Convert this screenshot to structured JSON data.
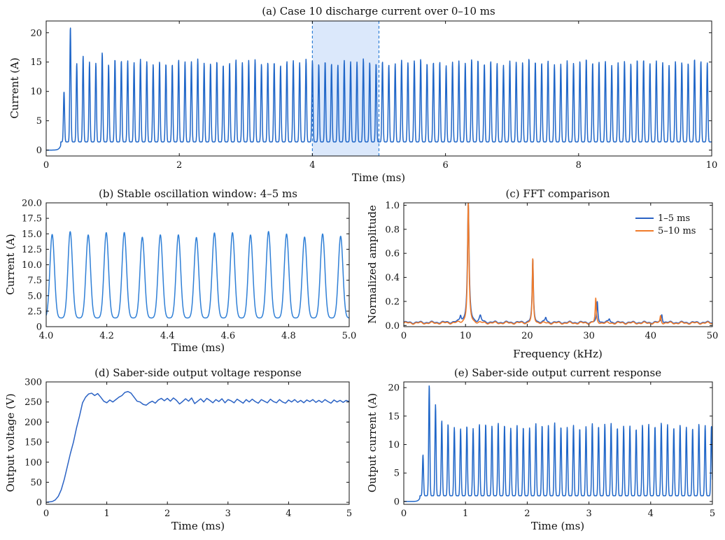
{
  "chart_data": [
    {
      "id": "a",
      "type": "line",
      "title": "(a) Case 10 discharge current over 0–10 ms",
      "xlabel": "Time (ms)",
      "ylabel": "Current (A)",
      "xlim": [
        0,
        10
      ],
      "ylim": [
        -1,
        22
      ],
      "xticks": [
        "0",
        "2",
        "4",
        "6",
        "8",
        "10"
      ],
      "xtick_values": [
        0,
        2,
        4,
        6,
        8,
        10
      ],
      "yticks": [
        "0",
        "5",
        "10",
        "15",
        "20"
      ],
      "ytick_values": [
        0,
        5,
        10,
        15,
        20
      ],
      "grid": false,
      "highlight_window": [
        4,
        5
      ],
      "series": [
        {
          "color": "#1f66c8",
          "wave": {
            "start": 0.22,
            "period": 0.0957,
            "end": 10,
            "trough": 1.4,
            "peak_first": [
              10.0,
              21.0,
              14.8,
              16.0,
              15.0,
              14.8,
              16.6,
              14.6,
              15.5
            ],
            "peak_mean": 15.0,
            "pulse_width_fraction": 0.32,
            "pre_level": 0.0
          }
        }
      ]
    },
    {
      "id": "b",
      "type": "line",
      "title": "(b) Stable oscillation window: 4–5 ms",
      "xlabel": "Time (ms)",
      "ylabel": "Current (A)",
      "xlim": [
        4.0,
        5.0
      ],
      "ylim": [
        0,
        20
      ],
      "xticks": [
        "4.0",
        "4.2",
        "4.4",
        "4.6",
        "4.8",
        "5.0"
      ],
      "xtick_values": [
        4.0,
        4.2,
        4.4,
        4.6,
        4.8,
        5.0
      ],
      "yticks": [
        "0",
        "2.5",
        "5.0",
        "7.5",
        "10.0",
        "12.5",
        "15.0",
        "17.5",
        "20.0"
      ],
      "ytick_values": [
        0,
        2.5,
        5,
        7.5,
        10,
        12.5,
        15,
        17.5,
        20
      ],
      "grid": false,
      "series": [
        {
          "color": "#2f7fd6",
          "wave": {
            "start": 3.99,
            "period": 0.0595,
            "end": 5.0,
            "trough": 1.4,
            "peak_first": [],
            "peak_mean": 14.9,
            "pulse_width_fraction": 0.45,
            "pre_level": 1.4
          }
        }
      ]
    },
    {
      "id": "c",
      "type": "line",
      "title": "(c) FFT comparison",
      "xlabel": "Frequency (kHz)",
      "ylabel": "Normalized amplitude",
      "xlim": [
        0,
        50
      ],
      "ylim": [
        -0.01,
        1.02
      ],
      "xticks": [
        "0",
        "10",
        "20",
        "30",
        "40",
        "50"
      ],
      "xtick_values": [
        0,
        10,
        20,
        30,
        40,
        50
      ],
      "yticks": [
        "0.0",
        "0.2",
        "0.4",
        "0.6",
        "0.8",
        "1.0"
      ],
      "ytick_values": [
        0,
        0.2,
        0.4,
        0.6,
        0.8,
        1.0
      ],
      "grid": false,
      "legend": "top-right",
      "series": [
        {
          "name": "1–5 ms",
          "color": "#2a62c4",
          "peaks": [
            [
              10.45,
              0.98,
              0.35
            ],
            [
              20.9,
              0.52,
              0.25
            ],
            [
              31.35,
              0.17,
              0.25
            ],
            [
              41.8,
              0.07,
              0.25
            ],
            [
              9.2,
              0.05,
              0.3
            ],
            [
              12.4,
              0.05,
              0.4
            ],
            [
              23.0,
              0.04,
              0.3
            ],
            [
              33.3,
              0.03,
              0.3
            ]
          ],
          "baseline": 0.025
        },
        {
          "name": "5–10 ms",
          "color": "#f07b2a",
          "peaks": [
            [
              10.45,
              1.0,
              0.3
            ],
            [
              20.9,
              0.53,
              0.22
            ],
            [
              31.1,
              0.2,
              0.22
            ],
            [
              41.6,
              0.06,
              0.22
            ]
          ],
          "baseline": 0.02
        }
      ]
    },
    {
      "id": "d",
      "type": "line",
      "title": "(d) Saber-side output voltage response",
      "xlabel": "Time (ms)",
      "ylabel": "Output voltage (V)",
      "xlim": [
        0,
        5
      ],
      "ylim": [
        -5,
        300
      ],
      "xticks": [
        "0",
        "1",
        "2",
        "3",
        "4",
        "5"
      ],
      "xtick_values": [
        0,
        1,
        2,
        3,
        4,
        5
      ],
      "yticks": [
        "0",
        "50",
        "100",
        "150",
        "200",
        "250",
        "300"
      ],
      "ytick_values": [
        0,
        50,
        100,
        150,
        200,
        250,
        300
      ],
      "grid": false,
      "series": [
        {
          "color": "#2a62c4",
          "x": [
            0,
            0.1,
            0.15,
            0.2,
            0.25,
            0.3,
            0.35,
            0.4,
            0.45,
            0.5,
            0.55,
            0.6,
            0.65,
            0.7,
            0.75,
            0.8,
            0.85,
            0.9,
            0.95,
            1.0,
            1.05,
            1.1,
            1.15,
            1.2,
            1.25,
            1.3,
            1.35,
            1.4,
            1.45,
            1.5,
            1.55,
            1.6,
            1.65,
            1.7,
            1.75,
            1.8,
            1.85,
            1.9,
            1.95,
            2.0,
            2.05,
            2.1,
            2.15,
            2.2,
            2.25,
            2.3,
            2.35,
            2.4,
            2.45,
            2.5,
            2.55,
            2.6,
            2.65,
            2.7,
            2.75,
            2.8,
            2.85,
            2.9,
            2.95,
            3.0,
            3.05,
            3.1,
            3.15,
            3.2,
            3.25,
            3.3,
            3.35,
            3.4,
            3.45,
            3.5,
            3.55,
            3.6,
            3.65,
            3.7,
            3.75,
            3.8,
            3.85,
            3.9,
            3.95,
            4.0,
            4.05,
            4.1,
            4.15,
            4.2,
            4.25,
            4.3,
            4.35,
            4.4,
            4.45,
            4.5,
            4.55,
            4.6,
            4.65,
            4.7,
            4.75,
            4.8,
            4.85,
            4.9,
            4.95,
            5.0
          ],
          "values": [
            0,
            2,
            6,
            15,
            32,
            58,
            90,
            122,
            150,
            185,
            215,
            248,
            262,
            270,
            272,
            266,
            271,
            262,
            252,
            248,
            255,
            250,
            256,
            262,
            266,
            274,
            276,
            272,
            262,
            252,
            250,
            244,
            242,
            248,
            252,
            247,
            255,
            259,
            253,
            259,
            252,
            260,
            254,
            245,
            251,
            258,
            252,
            260,
            246,
            252,
            258,
            250,
            259,
            254,
            248,
            256,
            251,
            258,
            248,
            256,
            253,
            248,
            257,
            252,
            247,
            256,
            250,
            257,
            251,
            247,
            256,
            252,
            248,
            257,
            251,
            248,
            256,
            250,
            247,
            255,
            250,
            256,
            249,
            254,
            248,
            255,
            251,
            256,
            249,
            254,
            249,
            256,
            251,
            247,
            255,
            250,
            254,
            249,
            254,
            251
          ]
        }
      ]
    },
    {
      "id": "e",
      "type": "line",
      "title": "(e) Saber-side output current response",
      "xlabel": "Time (ms)",
      "ylabel": "Output current (A)",
      "xlim": [
        0,
        5
      ],
      "ylim": [
        -0.5,
        21
      ],
      "xticks": [
        "0",
        "1",
        "2",
        "3",
        "4",
        "5"
      ],
      "xtick_values": [
        0,
        1,
        2,
        3,
        4,
        5
      ],
      "yticks": [
        "0",
        "5",
        "10",
        "15",
        "20"
      ],
      "ytick_values": [
        0,
        5,
        10,
        15,
        20
      ],
      "grid": false,
      "series": [
        {
          "color": "#1f66c8",
          "wave": {
            "start": 0.26,
            "period": 0.1016,
            "end": 5,
            "trough": 1.0,
            "peak_first": [
              8.2,
              20.5,
              17.0,
              14.2,
              13.6,
              13.0,
              12.8
            ],
            "peak_mean": 13.3,
            "pulse_width_fraction": 0.32,
            "pre_level": 0.0
          }
        }
      ]
    }
  ]
}
